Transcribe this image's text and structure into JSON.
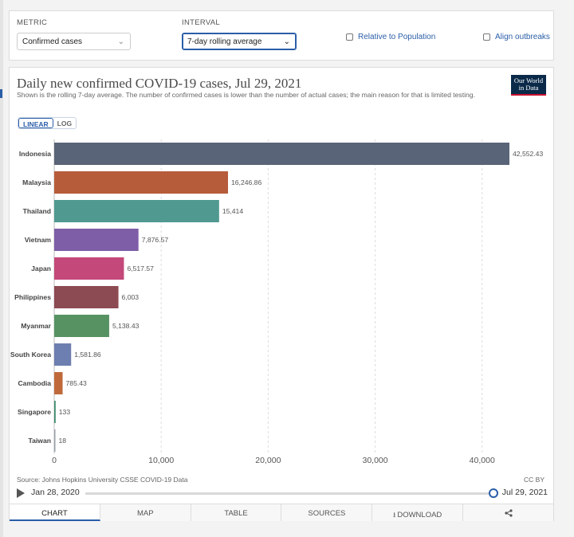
{
  "controls": {
    "metric_label": "METRIC",
    "metric_value": "Confirmed cases",
    "interval_label": "INTERVAL",
    "interval_value": "7-day rolling average",
    "relative_label": "Relative to Population",
    "align_label": "Align outbreaks"
  },
  "header": {
    "title": "Daily new confirmed COVID-19 cases, Jul 29, 2021",
    "subtitle": "Shown is the rolling 7-day average. The number of confirmed cases is lower than the number of actual cases; the main reason for that is limited testing.",
    "logo_line1": "Our World",
    "logo_line2": "in Data",
    "scale_linear": "LINEAR",
    "scale_log": "LOG"
  },
  "chart_data": {
    "type": "bar",
    "orientation": "horizontal",
    "categories": [
      "Indonesia",
      "Malaysia",
      "Thailand",
      "Vietnam",
      "Japan",
      "Philippines",
      "Myanmar",
      "South Korea",
      "Cambodia",
      "Singapore",
      "Taiwan"
    ],
    "values": [
      42552.43,
      16246.86,
      15414,
      7876.57,
      6517.57,
      6003,
      5138.43,
      1581.86,
      785.43,
      133,
      18
    ],
    "value_labels": [
      "42,552.43",
      "16,246.86",
      "15,414",
      "7,876.57",
      "6,517.57",
      "6,003",
      "5,138.43",
      "1,581.86",
      "785.43",
      "133",
      "18"
    ],
    "colors": [
      "#5a6478",
      "#b65c3a",
      "#4f9990",
      "#7e5ea6",
      "#c4487a",
      "#8c4a52",
      "#579262",
      "#6d7fb0",
      "#c06a3c",
      "#3d8c6e",
      "#9aa0a8"
    ],
    "xlim": [
      0,
      42552.43
    ],
    "xticks": [
      0,
      10000,
      20000,
      30000,
      40000
    ],
    "xtick_labels": [
      "0",
      "10,000",
      "20,000",
      "30,000",
      "40,000"
    ],
    "grid": true
  },
  "footer": {
    "source": "Source: Johns Hopkins University CSSE COVID-19 Data",
    "license": "CC BY",
    "timeline_start": "Jan 28, 2020",
    "timeline_end": "Jul 29, 2021",
    "timeline_position": 1.0
  },
  "tabs": [
    {
      "label": "CHART",
      "icon": ""
    },
    {
      "label": "MAP",
      "icon": ""
    },
    {
      "label": "TABLE",
      "icon": ""
    },
    {
      "label": "SOURCES",
      "icon": ""
    },
    {
      "label": "DOWNLOAD",
      "icon": "download-icon"
    },
    {
      "label": "",
      "icon": "share-icon"
    }
  ],
  "colors": {
    "accent": "#2a5ea8",
    "logo_bg": "#0b2a4a",
    "logo_bar": "#c8102e"
  }
}
